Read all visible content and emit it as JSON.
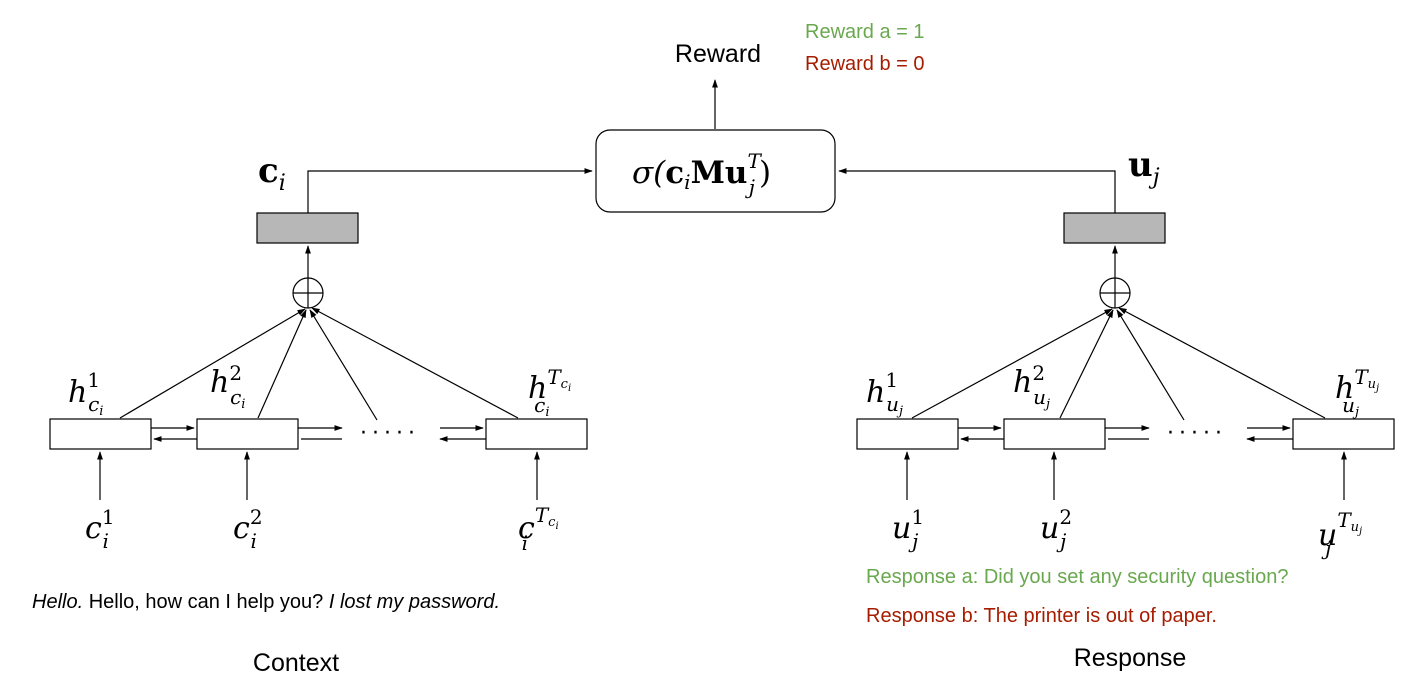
{
  "colors": {
    "line": "#000000",
    "box_fill": "#ffffff",
    "dense_fill": "#b7b7b7",
    "positive": "#6aa84f",
    "negative": "#a61c00"
  },
  "reward": {
    "label": "Reward",
    "a_text": "Reward a = 1",
    "b_text": "Reward b = 0"
  },
  "score": {
    "sigma": "σ(",
    "c": "c",
    "c_sub": "i",
    "M": "M",
    "u": "u",
    "u_sup": "T",
    "u_sub": "j",
    "close": ")"
  },
  "context": {
    "vec": "c",
    "vec_sub": "i",
    "h1": {
      "base": "h",
      "sup": "1",
      "sub": "c",
      "subsub": "i"
    },
    "h2": {
      "base": "h",
      "sup": "2",
      "sub": "c",
      "subsub": "i"
    },
    "hT": {
      "base": "h",
      "sup": "T",
      "supsub": "c",
      "supsubsub": "i",
      "sub": "c",
      "subsub": "i"
    },
    "x1": {
      "base": "c",
      "sup": "1",
      "sub": "i"
    },
    "x2": {
      "base": "c",
      "sup": "2",
      "sub": "i"
    },
    "xT": {
      "base": "c",
      "sup": "T",
      "supsub": "c",
      "supsubsub": "i",
      "sub": "i"
    },
    "dots": "·····",
    "utterance_1": "Hello.",
    "utterance_2": " Hello, how can I help you? ",
    "utterance_3": "I lost my password.",
    "label": "Context"
  },
  "response": {
    "vec": "u",
    "vec_sub": "j",
    "h1": {
      "base": "h",
      "sup": "1",
      "sub": "u",
      "subsub": "j"
    },
    "h2": {
      "base": "h",
      "sup": "2",
      "sub": "u",
      "subsub": "j"
    },
    "hT": {
      "base": "h",
      "sup": "T",
      "supsub": "u",
      "supsubsub": "j",
      "sub": "u",
      "subsub": "j"
    },
    "x1": {
      "base": "u",
      "sup": "1",
      "sub": "j"
    },
    "x2": {
      "base": "u",
      "sup": "2",
      "sub": "j"
    },
    "xT": {
      "base": "u",
      "sup": "T",
      "supsub": "u",
      "supsubsub": "j",
      "sub": "j"
    },
    "dots": "·····",
    "text_a": "Response a: Did you set any security question?",
    "text_b": "Response b: The printer is out of paper.",
    "label": "Response"
  }
}
